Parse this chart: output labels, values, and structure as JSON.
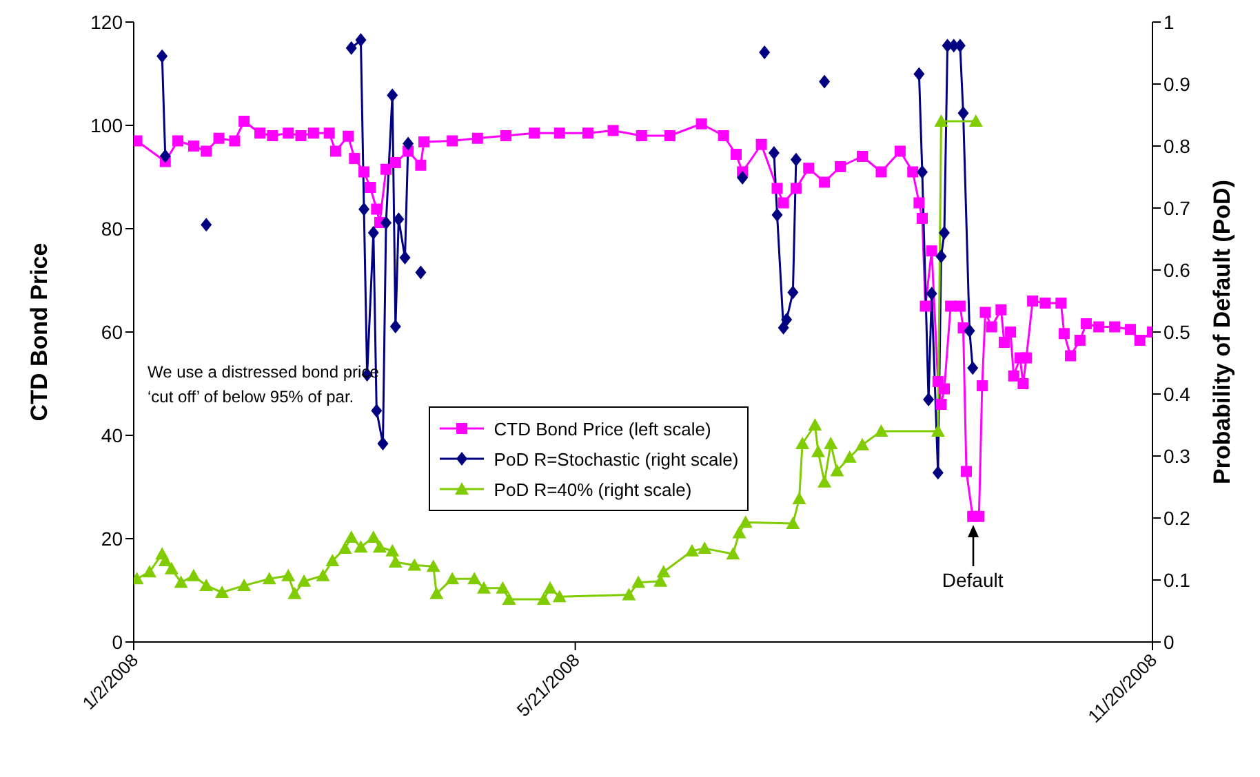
{
  "chart_data": {
    "type": "line",
    "ylabel": "CTD Bond Price",
    "y2label": "Probability of Default (PoD)",
    "xlim": [
      "2008-01-02",
      "2008-11-20"
    ],
    "xticks": [
      {
        "value": "2008-01-02",
        "label": "1/2/2008"
      },
      {
        "value": "2008-05-21",
        "label": "5/21/2008"
      },
      {
        "value": "2008-11-20",
        "label": "11/20/2008"
      }
    ],
    "ylim": [
      0,
      120
    ],
    "yticks": [
      0,
      20,
      40,
      60,
      80,
      100,
      120
    ],
    "y2lim": [
      0,
      1
    ],
    "y2ticks": [
      0,
      0.1,
      0.2,
      0.3,
      0.4,
      0.5,
      0.6,
      0.7,
      0.8,
      0.9,
      1
    ],
    "legend": "center",
    "annotations": [
      "We use a distressed bond price ‘cut off’ of below 95% of par.",
      {
        "text": "Default",
        "x": "2008-09-24",
        "y": 24.3
      }
    ],
    "series": [
      {
        "name": "CTD Bond Price (left scale)",
        "color": "#ff00ff",
        "marker": "square",
        "x": [
          "2008-01-03",
          "2008-01-12",
          "2008-01-16",
          "2008-01-21",
          "2008-01-25",
          "2008-01-29",
          "2008-02-03",
          "2008-02-06",
          "2008-02-11",
          "2008-02-15",
          "2008-02-20",
          "2008-02-24",
          "2008-02-28",
          "2008-03-04",
          "2008-03-06",
          "2008-03-10",
          "2008-03-12",
          "2008-03-15",
          "2008-03-17",
          "2008-03-19",
          "2008-03-20",
          "2008-03-22",
          "2008-03-25",
          "2008-03-29",
          "2008-04-02",
          "2008-04-03",
          "2008-04-12",
          "2008-04-20",
          "2008-04-29",
          "2008-05-08",
          "2008-05-16",
          "2008-05-25",
          "2008-06-02",
          "2008-06-11",
          "2008-06-20",
          "2008-06-30",
          "2008-07-07",
          "2008-07-11",
          "2008-07-13",
          "2008-07-19",
          "2008-07-24",
          "2008-07-26",
          "2008-07-30",
          "2008-08-03",
          "2008-08-08",
          "2008-08-13",
          "2008-08-20",
          "2008-08-26",
          "2008-09-01",
          "2008-09-05",
          "2008-09-07",
          "2008-09-08",
          "2008-09-09",
          "2008-09-11",
          "2008-09-13",
          "2008-09-14",
          "2008-09-15",
          "2008-09-17",
          "2008-09-20",
          "2008-09-21",
          "2008-09-22",
          "2008-09-24",
          "2008-09-26",
          "2008-09-27",
          "2008-09-28",
          "2008-09-30",
          "2008-10-03",
          "2008-10-04",
          "2008-10-06",
          "2008-10-07",
          "2008-10-09",
          "2008-10-10",
          "2008-10-11",
          "2008-10-13",
          "2008-10-17",
          "2008-10-22",
          "2008-10-23",
          "2008-10-25",
          "2008-10-28",
          "2008-10-30",
          "2008-11-03",
          "2008-11-08",
          "2008-11-13",
          "2008-11-16",
          "2008-11-20"
        ],
        "values": [
          97,
          93,
          97,
          96,
          95,
          97.5,
          97,
          100.8,
          98.5,
          98,
          98.5,
          98,
          98.5,
          98.5,
          95,
          97.9,
          93.6,
          91,
          88,
          83.8,
          81.2,
          91.5,
          92.8,
          95,
          92.3,
          96.8,
          97,
          97.5,
          98,
          98.5,
          98.5,
          98.5,
          99,
          98,
          98,
          100.3,
          98,
          94.4,
          91,
          96.3,
          87.8,
          85,
          87.8,
          91.7,
          89,
          92,
          94,
          91,
          95,
          91,
          85,
          82,
          65,
          75.7,
          50.4,
          46,
          49,
          65,
          65,
          60.8,
          33,
          24.3,
          24.3,
          49.6,
          63.8,
          61,
          64.3,
          58,
          60,
          51.5,
          55,
          50,
          55,
          66,
          65.6,
          65.6,
          59.7,
          55.4,
          58.4,
          61.6,
          61,
          61,
          60.5,
          58.4,
          60
        ]
      },
      {
        "name": "PoD R=Stochastic (right scale)",
        "color": "#000080",
        "marker": "diamond",
        "axis": "y2",
        "x": [
          "2008-01-11",
          "2008-01-12",
          "2008-01-18",
          "2008-01-25",
          "2008-02-15",
          "2008-03-11",
          "2008-03-14",
          "2008-03-15",
          "2008-03-16",
          "2008-03-18",
          "2008-03-19",
          "2008-03-21",
          "2008-03-22",
          "2008-03-24",
          "2008-03-25",
          "2008-03-26",
          "2008-03-28",
          "2008-03-29",
          "2008-04-01",
          "2008-04-02",
          "2008-04-10",
          "2008-07-13",
          "2008-07-16",
          "2008-07-20",
          "2008-07-21",
          "2008-07-23",
          "2008-07-24",
          "2008-07-26",
          "2008-07-27",
          "2008-07-29",
          "2008-07-30",
          "2008-08-04",
          "2008-08-08",
          "2008-08-20",
          "2008-09-07",
          "2008-09-08",
          "2008-09-10",
          "2008-09-11",
          "2008-09-13",
          "2008-09-14",
          "2008-09-15",
          "2008-09-16",
          "2008-09-18",
          "2008-09-20",
          "2008-09-21",
          "2008-09-23",
          "2008-09-24"
        ],
        "values": [
          0.945,
          0.784,
          null,
          0.673,
          null,
          0.958,
          0.971,
          0.698,
          0.431,
          0.66,
          0.373,
          0.32,
          0.676,
          0.882,
          0.509,
          0.682,
          0.62,
          0.804,
          null,
          0.596,
          null,
          0.749,
          null,
          0.951,
          null,
          0.789,
          0.689,
          0.507,
          0.52,
          0.564,
          0.778,
          null,
          0.904,
          null,
          0.916,
          0.758,
          0.391,
          0.562,
          0.273,
          0.622,
          0.66,
          0.962,
          0.962,
          0.962,
          0.853,
          0.502,
          0.442
        ]
      },
      {
        "name": "PoD R=40% (right scale)",
        "color": "#80cc00",
        "marker": "triangle",
        "axis": "y2",
        "x": [
          "2008-01-03",
          "2008-01-07",
          "2008-01-11",
          "2008-01-12",
          "2008-01-14",
          "2008-01-17",
          "2008-01-21",
          "2008-01-25",
          "2008-01-30",
          "2008-02-06",
          "2008-02-14",
          "2008-02-20",
          "2008-02-22",
          "2008-02-25",
          "2008-03-02",
          "2008-03-05",
          "2008-03-09",
          "2008-03-11",
          "2008-03-14",
          "2008-03-18",
          "2008-03-20",
          "2008-03-24",
          "2008-03-25",
          "2008-03-31",
          "2008-04-06",
          "2008-04-07",
          "2008-04-12",
          "2008-04-19",
          "2008-04-22",
          "2008-04-28",
          "2008-04-30",
          "2008-05-11",
          "2008-05-13",
          "2008-05-16",
          "2008-06-07",
          "2008-06-10",
          "2008-06-17",
          "2008-06-18",
          "2008-06-27",
          "2008-07-01",
          "2008-07-10",
          "2008-07-12",
          "2008-07-14",
          "2008-07-29",
          "2008-07-31",
          "2008-08-01",
          "2008-08-05",
          "2008-08-06",
          "2008-08-08",
          "2008-08-10",
          "2008-08-12",
          "2008-08-16",
          "2008-08-20",
          "2008-08-26",
          "2008-09-13",
          "2008-09-14",
          "2008-09-25"
        ],
        "values": [
          0.102,
          0.113,
          0.142,
          0.131,
          0.118,
          0.096,
          0.107,
          0.091,
          0.08,
          0.091,
          0.102,
          0.107,
          0.078,
          0.098,
          0.107,
          0.131,
          0.151,
          0.169,
          0.153,
          0.169,
          0.153,
          0.147,
          0.129,
          0.124,
          0.122,
          0.078,
          0.102,
          0.102,
          0.087,
          0.087,
          0.069,
          0.069,
          0.087,
          0.073,
          0.076,
          0.096,
          0.098,
          0.113,
          0.147,
          0.151,
          0.142,
          0.176,
          0.193,
          0.191,
          0.231,
          0.32,
          0.35,
          0.307,
          0.258,
          0.32,
          0.276,
          0.298,
          0.318,
          0.34,
          0.34,
          0.84,
          0.84
        ]
      }
    ]
  }
}
